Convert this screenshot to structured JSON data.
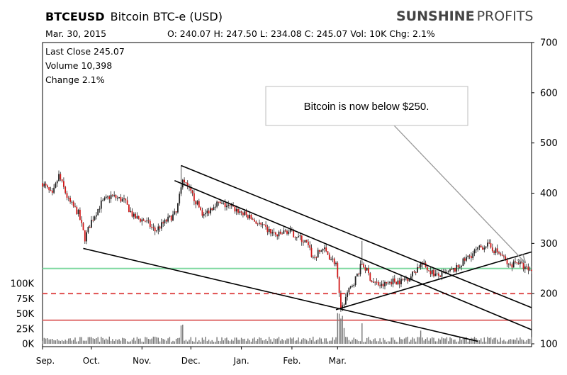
{
  "header": {
    "symbol": "BTCEUSD",
    "name": "Bitcoin BTC-e (USD)",
    "date": "Mar. 30, 2015",
    "ohlc": "O: 240.07  H: 247.50  L: 234.08  C: 245.07  Vol: 10K  Chg: 2.1%",
    "brand_bold": "SUNSHINE",
    "brand_light": "PROFITS"
  },
  "info": {
    "last_close": "Last Close 245.07",
    "volume": "Volume 10,398",
    "change": "Change 2.1%"
  },
  "annotation": {
    "text": "Bitcoin  is  now  below  $250."
  },
  "chart_data": {
    "type": "candlestick",
    "x_ticks": [
      "Sep.",
      "Oct.",
      "Nov.",
      "Dec.",
      "Jan.",
      "Feb.",
      "Mar."
    ],
    "y_ticks": [
      "700",
      "600",
      "500",
      "400",
      "300",
      "200",
      "100"
    ],
    "ylim": [
      100,
      700
    ],
    "volume_ticks": [
      "100K",
      "75K",
      "50K",
      "25K",
      "0K"
    ],
    "volume_ylim": [
      0,
      100000
    ],
    "last_close": 245.07,
    "horizontal_levels": [
      {
        "value": 250,
        "color": "#7fd8a0",
        "style": "solid"
      },
      {
        "value": 200,
        "color": "#e05050",
        "style": "dashed"
      },
      {
        "value": 147,
        "color": "#e07070",
        "style": "solid"
      }
    ],
    "price_path": [
      {
        "d": 0,
        "p": 420
      },
      {
        "d": 6,
        "p": 395
      },
      {
        "d": 10,
        "p": 435
      },
      {
        "d": 16,
        "p": 385
      },
      {
        "d": 22,
        "p": 360
      },
      {
        "d": 26,
        "p": 310
      },
      {
        "d": 30,
        "p": 345
      },
      {
        "d": 36,
        "p": 380
      },
      {
        "d": 42,
        "p": 395
      },
      {
        "d": 50,
        "p": 385
      },
      {
        "d": 56,
        "p": 352
      },
      {
        "d": 63,
        "p": 345
      },
      {
        "d": 69,
        "p": 325
      },
      {
        "d": 76,
        "p": 345
      },
      {
        "d": 82,
        "p": 360
      },
      {
        "d": 86,
        "p": 425
      },
      {
        "d": 92,
        "p": 395
      },
      {
        "d": 99,
        "p": 355
      },
      {
        "d": 106,
        "p": 380
      },
      {
        "d": 113,
        "p": 375
      },
      {
        "d": 120,
        "p": 365
      },
      {
        "d": 128,
        "p": 350
      },
      {
        "d": 136,
        "p": 330
      },
      {
        "d": 144,
        "p": 315
      },
      {
        "d": 150,
        "p": 325
      },
      {
        "d": 156,
        "p": 315
      },
      {
        "d": 162,
        "p": 300
      },
      {
        "d": 166,
        "p": 270
      },
      {
        "d": 172,
        "p": 290
      },
      {
        "d": 177,
        "p": 270
      },
      {
        "d": 180,
        "p": 260
      },
      {
        "d": 182,
        "p": 195
      },
      {
        "d": 183,
        "p": 170
      },
      {
        "d": 187,
        "p": 200
      },
      {
        "d": 192,
        "p": 230
      },
      {
        "d": 196,
        "p": 260
      },
      {
        "d": 199,
        "p": 245
      },
      {
        "d": 202,
        "p": 225
      },
      {
        "d": 208,
        "p": 215
      },
      {
        "d": 214,
        "p": 225
      },
      {
        "d": 220,
        "p": 225
      },
      {
        "d": 226,
        "p": 235
      },
      {
        "d": 232,
        "p": 260
      },
      {
        "d": 236,
        "p": 250
      },
      {
        "d": 242,
        "p": 235
      },
      {
        "d": 248,
        "p": 240
      },
      {
        "d": 254,
        "p": 250
      },
      {
        "d": 260,
        "p": 270
      },
      {
        "d": 266,
        "p": 285
      },
      {
        "d": 272,
        "p": 298
      },
      {
        "d": 278,
        "p": 285
      },
      {
        "d": 282,
        "p": 275
      },
      {
        "d": 286,
        "p": 255
      },
      {
        "d": 291,
        "p": 265
      },
      {
        "d": 296,
        "p": 250
      },
      {
        "d": 300,
        "p": 245
      }
    ],
    "trendlines": [
      {
        "p1": {
          "d": 25,
          "p": 290
        },
        "p2": {
          "d": 267,
          "p": 105
        }
      },
      {
        "p1": {
          "d": 85,
          "p": 455
        },
        "p2": {
          "d": 300,
          "p": 172
        }
      },
      {
        "p1": {
          "d": 81,
          "p": 425
        },
        "p2": {
          "d": 300,
          "p": 128
        }
      },
      {
        "p1": {
          "d": 180,
          "p": 168
        },
        "p2": {
          "d": 300,
          "p": 283
        }
      },
      {
        "p1": {
          "d": 200,
          "p": 588
        },
        "p2": {
          "d": 296,
          "p": 262
        },
        "color": "#999999",
        "arrow": true
      }
    ]
  }
}
